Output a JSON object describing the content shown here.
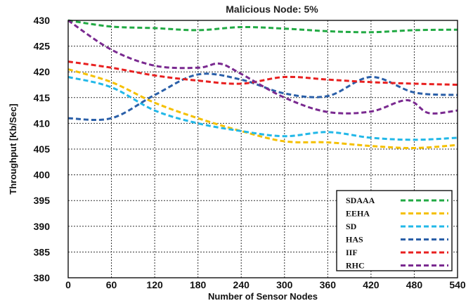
{
  "chart_data": {
    "type": "line",
    "title": "Malicious Node: 5%",
    "xlabel": "Number of Sensor Nodes",
    "ylabel": "Throughput [Kb/Sec]",
    "xlim": [
      0,
      540
    ],
    "ylim": [
      380,
      430
    ],
    "xticks": [
      0,
      60,
      120,
      180,
      240,
      300,
      360,
      420,
      480,
      540
    ],
    "yticks": [
      380,
      385,
      390,
      395,
      400,
      405,
      410,
      415,
      420,
      425,
      430
    ],
    "grid": true,
    "legend_position": "bottom-right",
    "series": [
      {
        "name": "SDAAA",
        "color": "#22aa44",
        "x": [
          0,
          60,
          120,
          180,
          240,
          300,
          360,
          420,
          480,
          540
        ],
        "y": [
          430,
          428.8,
          428.5,
          428.1,
          428.7,
          428.4,
          427.9,
          427.7,
          428.1,
          428.2
        ]
      },
      {
        "name": "EEHA",
        "color": "#f5c000",
        "x": [
          0,
          60,
          120,
          180,
          240,
          300,
          360,
          420,
          480,
          540
        ],
        "y": [
          420.5,
          418,
          414,
          411,
          408.5,
          406.5,
          406.3,
          405.6,
          405.2,
          405.8
        ]
      },
      {
        "name": "SD",
        "color": "#22b8e8",
        "x": [
          0,
          60,
          120,
          180,
          240,
          300,
          360,
          420,
          480,
          540
        ],
        "y": [
          419,
          417,
          412.5,
          410,
          408.5,
          407.5,
          408.3,
          407.2,
          406.8,
          407.2
        ]
      },
      {
        "name": "HAS",
        "color": "#2a5fa8",
        "x": [
          0,
          60,
          120,
          180,
          240,
          300,
          360,
          420,
          480,
          540
        ],
        "y": [
          411,
          411,
          415.5,
          419.5,
          418.5,
          415.8,
          415.3,
          419,
          416,
          415.5
        ]
      },
      {
        "name": "IIF",
        "color": "#e82020",
        "x": [
          0,
          60,
          120,
          180,
          240,
          300,
          360,
          420,
          480,
          540
        ],
        "y": [
          422,
          420.8,
          419.3,
          418.3,
          417.7,
          419,
          418.5,
          418,
          417.7,
          417.5
        ]
      },
      {
        "name": "RHC",
        "color": "#7a2a90",
        "x": [
          0,
          60,
          120,
          180,
          210,
          240,
          300,
          360,
          420,
          470,
          500,
          540
        ],
        "y": [
          430,
          424.3,
          421.2,
          420.8,
          421.6,
          419.6,
          415,
          412.2,
          412.3,
          414.5,
          412,
          412.5
        ]
      }
    ]
  }
}
